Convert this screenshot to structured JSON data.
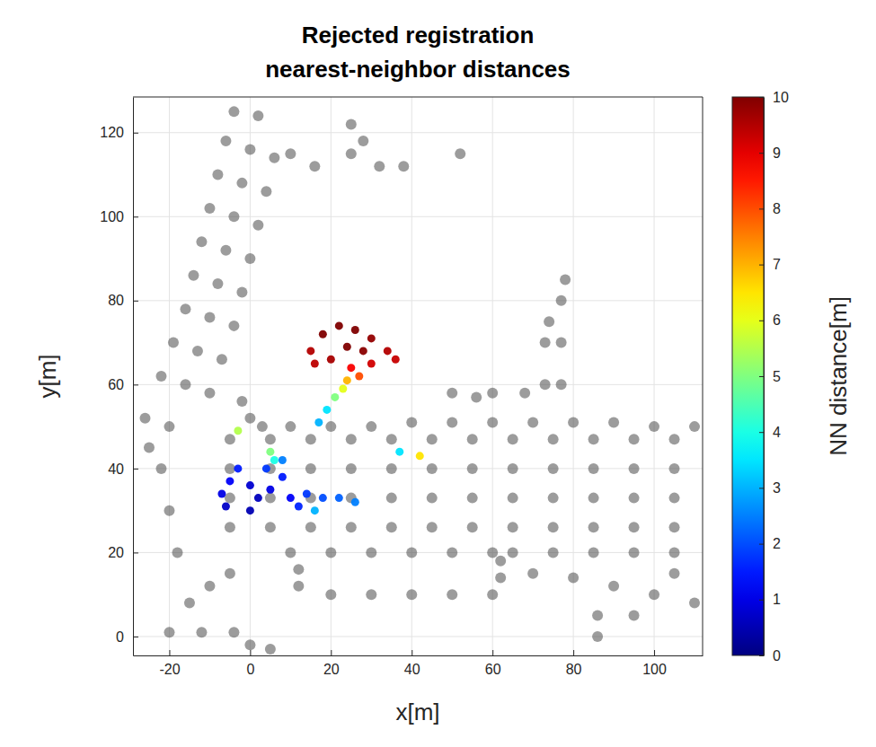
{
  "chart_data": {
    "type": "scatter",
    "title": "Rejected registration nearest-neighbor distances",
    "x_label": "x[m]",
    "y_label": "y[m]",
    "xlim": [
      -29,
      112
    ],
    "xticks": [
      -20,
      0,
      20,
      40,
      60,
      80,
      100
    ],
    "ylim": [
      -4.5,
      128.5
    ],
    "yticks": [
      0,
      20,
      40,
      60,
      80,
      100,
      120
    ],
    "grid": true,
    "series": [
      {
        "color": "#4a4a4a",
        "marker": "circle",
        "x": [
          -22,
          -16,
          -10,
          -19,
          -13,
          -7,
          -16,
          -10,
          -4,
          -14,
          -8,
          -2,
          -12,
          -6,
          0,
          -10,
          -4,
          2,
          -8,
          -2,
          4,
          -6,
          0,
          6,
          -4,
          2,
          -26,
          -20,
          0,
          -2,
          3,
          10,
          20,
          30,
          40,
          50,
          60,
          70,
          80,
          90,
          100,
          110,
          -5,
          5,
          15,
          25,
          35,
          45,
          55,
          65,
          75,
          85,
          95,
          105,
          -5,
          5,
          15,
          25,
          35,
          45,
          55,
          65,
          75,
          85,
          95,
          105,
          -5,
          5,
          15,
          25,
          35,
          45,
          55,
          65,
          75,
          85,
          95,
          105,
          -5,
          5,
          15,
          25,
          35,
          45,
          55,
          65,
          75,
          85,
          95,
          105,
          10,
          20,
          30,
          40,
          50,
          60,
          12,
          12,
          20,
          30,
          40,
          50,
          60,
          62,
          62,
          65,
          75,
          85,
          95,
          105,
          70,
          80,
          90,
          100,
          86,
          86,
          95,
          105,
          110,
          77,
          77,
          77,
          78,
          73,
          73,
          74,
          68,
          60,
          56,
          50,
          25,
          25,
          28,
          32,
          38,
          52,
          16,
          10,
          -20,
          -12,
          -4,
          -15,
          -10,
          -5,
          0,
          5,
          -25,
          -22,
          -20,
          -18
        ],
        "values": [
          62,
          60,
          58,
          70,
          68,
          66,
          78,
          76,
          74,
          86,
          84,
          82,
          94,
          92,
          90,
          102,
          100,
          98,
          110,
          108,
          106,
          118,
          116,
          114,
          125,
          124,
          52,
          50,
          52,
          56,
          50,
          50,
          50,
          50,
          51,
          51,
          51,
          51,
          51,
          51,
          50,
          50,
          26,
          26,
          26,
          26,
          26,
          26,
          26,
          26,
          26,
          26,
          26,
          26,
          33,
          33,
          33,
          33,
          33,
          33,
          33,
          33,
          33,
          33,
          33,
          33,
          40,
          40,
          40,
          40,
          40,
          40,
          40,
          40,
          40,
          40,
          40,
          40,
          47,
          47,
          47,
          47,
          47,
          47,
          47,
          47,
          47,
          47,
          47,
          47,
          20,
          20,
          20,
          20,
          20,
          20,
          16,
          12,
          10,
          10,
          10,
          10,
          10,
          14,
          18,
          20,
          20,
          20,
          20,
          20,
          15,
          14,
          12,
          10,
          5,
          0,
          5,
          15,
          8,
          60,
          70,
          80,
          85,
          60,
          70,
          75,
          58,
          58,
          57,
          58,
          122,
          115,
          118,
          112,
          112,
          115,
          112,
          115,
          1,
          1,
          1,
          8,
          12,
          15,
          -2,
          -3,
          45,
          40,
          30,
          20
        ]
      },
      {
        "marker": "circle",
        "x": [
          15,
          18,
          22,
          26,
          30,
          34,
          30,
          25,
          20,
          24,
          28,
          16,
          36,
          27,
          24,
          23,
          21,
          19,
          17,
          -7,
          -5,
          -3,
          0,
          2,
          5,
          8,
          10,
          -6,
          0,
          14,
          18,
          22,
          26,
          12,
          16,
          8,
          4,
          -3,
          5,
          6,
          42,
          37
        ],
        "values": [
          68,
          72,
          74,
          73,
          71,
          68,
          65,
          64,
          66,
          69,
          68,
          65,
          66,
          62,
          61,
          59,
          57,
          54,
          51,
          34,
          37,
          40,
          36,
          33,
          35,
          38,
          33,
          31,
          30,
          34,
          33,
          33,
          32,
          31,
          30,
          42,
          40,
          49,
          44,
          42,
          43,
          44
        ],
        "nn_distance": [
          9.5,
          10,
          10,
          10,
          9.8,
          9.5,
          9.2,
          8.8,
          9.6,
          10,
          9.9,
          9.4,
          9.3,
          8,
          7,
          6,
          5,
          3.5,
          3,
          1,
          1.2,
          1.5,
          0.8,
          0.6,
          1,
          1.5,
          1.2,
          0.7,
          0.5,
          1.8,
          2,
          2.2,
          2.5,
          1.6,
          3,
          2.5,
          1.8,
          5.5,
          5,
          4,
          6.5,
          3.5
        ]
      }
    ],
    "colorbar": {
      "label": "NN distance[m]",
      "range": [
        0,
        10
      ],
      "ticks": [
        0,
        1,
        2,
        3,
        4,
        5,
        6,
        7,
        8,
        9,
        10
      ]
    }
  }
}
